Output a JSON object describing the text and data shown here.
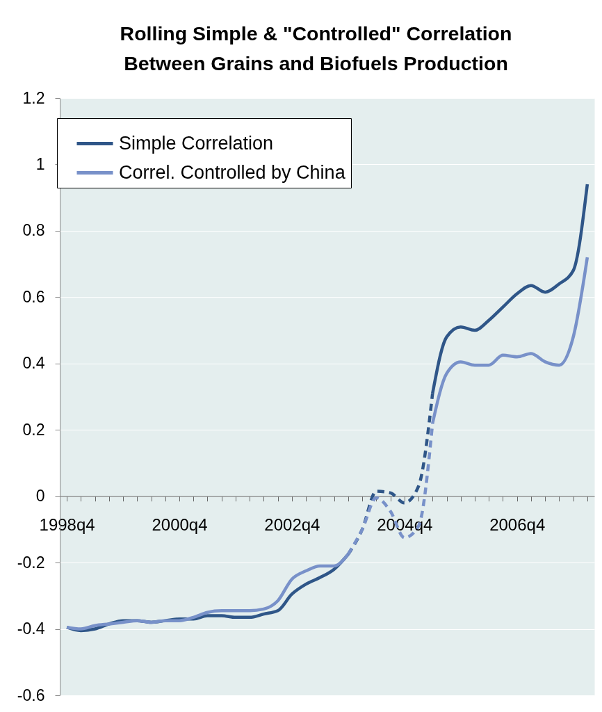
{
  "chart_data": {
    "type": "line",
    "title": "Rolling Simple & \"Controlled\" Correlation\nBetween Grains and Biofuels Production",
    "categories": [
      "1998q4",
      null,
      null,
      null,
      null,
      null,
      null,
      null,
      "2000q4",
      null,
      null,
      null,
      null,
      null,
      null,
      null,
      "2002q4",
      null,
      null,
      null,
      null,
      null,
      null,
      null,
      "2004q4",
      null,
      null,
      null,
      null,
      null,
      null,
      null,
      "2006q4",
      null,
      null,
      null,
      null,
      null
    ],
    "series": [
      {
        "name": "Simple Correlation",
        "color": "#2f5688",
        "values": [
          -0.395,
          -0.405,
          -0.4,
          -0.385,
          -0.375,
          -0.375,
          -0.38,
          -0.375,
          -0.37,
          -0.37,
          -0.36,
          -0.36,
          -0.365,
          -0.365,
          -0.355,
          -0.345,
          -0.295,
          -0.265,
          -0.245,
          -0.22,
          -0.175,
          null,
          null,
          null,
          null,
          null,
          0.31,
          0.48,
          0.51,
          0.5,
          0.53,
          0.57,
          0.61,
          0.635,
          0.615,
          0.64,
          0.68,
          0.94
        ]
      },
      {
        "color": "#2f5688",
        "line_style": "dashed",
        "values": [
          null,
          null,
          null,
          null,
          null,
          null,
          null,
          null,
          null,
          null,
          null,
          null,
          null,
          null,
          null,
          null,
          null,
          null,
          null,
          null,
          -0.175,
          -0.1,
          0.015,
          0.01,
          -0.02,
          0.03,
          0.31,
          null,
          null,
          null,
          null,
          null,
          null,
          null,
          null,
          null,
          null,
          null
        ]
      },
      {
        "name": "Correl. Controlled by China",
        "color": "#7891c9",
        "values": [
          -0.395,
          -0.4,
          -0.39,
          -0.385,
          -0.38,
          -0.375,
          -0.38,
          -0.375,
          -0.375,
          -0.365,
          -0.35,
          -0.345,
          -0.345,
          -0.345,
          -0.34,
          -0.315,
          -0.25,
          -0.225,
          -0.21,
          -0.21,
          -0.175,
          null,
          null,
          null,
          null,
          null,
          0.22,
          0.37,
          0.405,
          0.395,
          0.395,
          0.425,
          0.42,
          0.43,
          0.405,
          0.395,
          0.48,
          0.72
        ]
      },
      {
        "color": "#7891c9",
        "line_style": "dashed",
        "values": [
          null,
          null,
          null,
          null,
          null,
          null,
          null,
          null,
          null,
          null,
          null,
          null,
          null,
          null,
          null,
          null,
          null,
          null,
          null,
          null,
          -0.175,
          -0.1,
          -0.005,
          -0.045,
          -0.125,
          -0.09,
          0.22,
          null,
          null,
          null,
          null,
          null,
          null,
          null,
          null,
          null,
          null,
          null
        ]
      }
    ],
    "ylim": [
      -0.6,
      1.2
    ],
    "yticks": [
      -0.6,
      -0.4,
      -0.2,
      0,
      0.2,
      0.4,
      0.6,
      0.8,
      1,
      1.2
    ],
    "grid": "y",
    "legend": "top left"
  }
}
